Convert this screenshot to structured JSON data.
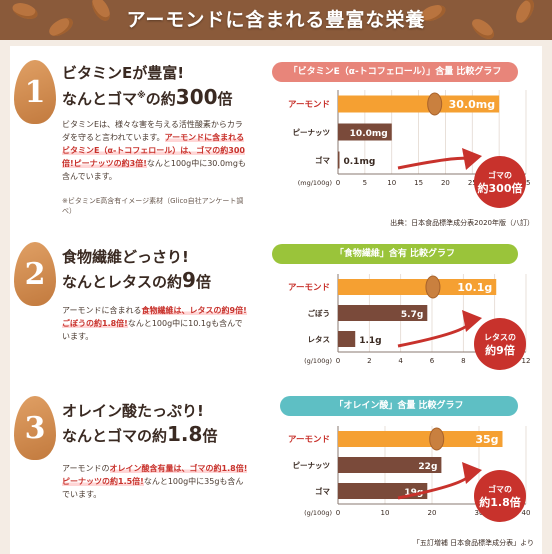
{
  "page_title": "アーモンドに含まれる豊富な栄養",
  "colors": {
    "orange": "#f5a032",
    "brown": "#7a4a3a",
    "pink": "#e8857a",
    "green": "#9ac43a",
    "teal": "#5ebfc4",
    "red": "#c8322c"
  },
  "sections": [
    {
      "number": "1",
      "heading_line1": "ビタミンEが豊富!",
      "heading_line2_prefix": "なんとゴマ",
      "heading_line2_mark": "※",
      "heading_line2_mid": "の約",
      "heading_line2_big": "300",
      "heading_line2_suffix": "倍",
      "body_1": "ビタミンEは、様々な害を与える活性酸素からカラダを守ると言われています。",
      "body_hl": "アーモンドに含まれるビタミンE（α-トコフェロール）は、ゴマの約300倍!ピーナッツの約3倍!",
      "body_2": "なんと100g中に30.0mgも含んでいます。",
      "note": "※ビタミンE高含有イメージ素材（Glico自社アンケート調べ）",
      "chart_title": "「ビタミンE（α-トコフェロール）」含量 比較グラフ",
      "source": "出典：日本食品標準成分表2020年版（八訂）",
      "callout_1": "ゴマの",
      "callout_2": "約300倍"
    },
    {
      "number": "2",
      "heading_line1": "食物繊維どっさり!",
      "heading_line2_prefix": "なんとレタスの約",
      "heading_line2_big": "9",
      "heading_line2_suffix": "倍",
      "body_1": "アーモンドに含まれる",
      "body_hl": "食物繊維は、レタスの約9倍!ごぼうの約1.8倍!",
      "body_2": "なんと100g中に10.1gも含んでいます。",
      "chart_title": "「食物繊維」含有 比較グラフ",
      "callout_1": "レタスの",
      "callout_2": "約9倍"
    },
    {
      "number": "3",
      "heading_line1": "オレイン酸たっぷり!",
      "heading_line2_prefix": "なんとゴマの約",
      "heading_line2_big": "1.8",
      "heading_line2_suffix": "倍",
      "body_1": "アーモンドの",
      "body_hl": "オレイン酸含有量は、ゴマの約1.8倍!ピーナッツの約1.5倍!",
      "body_2": "なんと100g中に35gも含んでいます。",
      "chart_title": "「オレイン酸」含量 比較グラフ",
      "source": "「五訂増補 日本食品標準成分表」より",
      "callout_1": "ゴマの",
      "callout_2": "約1.8倍"
    }
  ],
  "chart_data": [
    {
      "type": "bar",
      "title": "「ビタミンE（α-トコフェロール）」含量 比較グラフ",
      "categories": [
        "アーモンド",
        "ピーナッツ",
        "ゴマ"
      ],
      "values": [
        30.0,
        10.0,
        0.1
      ],
      "value_labels": [
        "30.0mg",
        "10.0mg",
        "0.1mg"
      ],
      "xlabel": "(mg/100g)",
      "xlim": [
        0,
        35
      ],
      "ticks": [
        0,
        5,
        10,
        15,
        20,
        25,
        30,
        35
      ],
      "tick_labels": [
        "0",
        "5",
        "10",
        "15",
        "20",
        "25",
        "30",
        "35"
      ]
    },
    {
      "type": "bar",
      "title": "「食物繊維」含有 比較グラフ",
      "categories": [
        "アーモンド",
        "ごぼう",
        "レタス"
      ],
      "values": [
        10.1,
        5.7,
        1.1
      ],
      "value_labels": [
        "10.1g",
        "5.7g",
        "1.1g"
      ],
      "xlabel": "(g/100g)",
      "xlim": [
        0,
        12
      ],
      "ticks": [
        0,
        2,
        4,
        6,
        8,
        10,
        12
      ],
      "tick_labels": [
        "0",
        "2",
        "4",
        "6",
        "8",
        "10",
        "12"
      ]
    },
    {
      "type": "bar",
      "title": "「オレイン酸」含量 比較グラフ",
      "categories": [
        "アーモンド",
        "ピーナッツ",
        "ゴマ"
      ],
      "values": [
        35,
        22,
        19
      ],
      "value_labels": [
        "35g",
        "22g",
        "19g"
      ],
      "xlabel": "(g/100g)",
      "xlim": [
        0,
        40
      ],
      "ticks": [
        0,
        10,
        20,
        30,
        40
      ],
      "tick_labels": [
        "0",
        "10",
        "20",
        "30",
        "40"
      ]
    }
  ]
}
